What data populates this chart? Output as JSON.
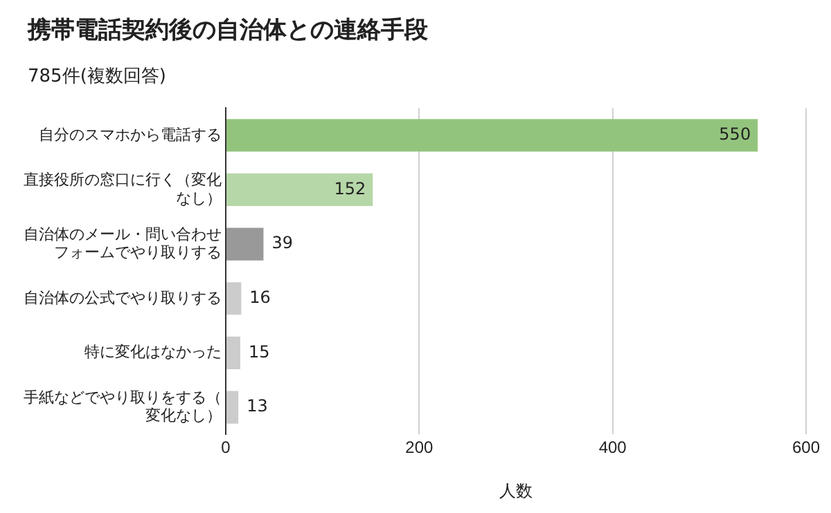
{
  "chart_data": {
    "type": "bar",
    "orientation": "horizontal",
    "title": "携帯電話契約後の自治体との連絡手段",
    "subtitle": "785件(複数回答)",
    "xlabel": "人数",
    "categories": [
      "自分のスマホから電話する",
      "直接役所の窓口に行く（変化なし）",
      "自治体のメール・問い合わせフォームでやり取りする",
      "自治体の公式でやり取りする",
      "特に変化はなかった",
      "手紙などでやり取りをする（変化なし）"
    ],
    "values": [
      550,
      152,
      39,
      16,
      15,
      13
    ],
    "colors": [
      "#93c47d",
      "#b6d7a8",
      "#999999",
      "#cccccc",
      "#cccccc",
      "#cccccc"
    ],
    "xlim": [
      0,
      600
    ],
    "xticks": [
      0,
      200,
      400,
      600
    ],
    "grid": "x",
    "legend": false,
    "data_labels": true
  }
}
